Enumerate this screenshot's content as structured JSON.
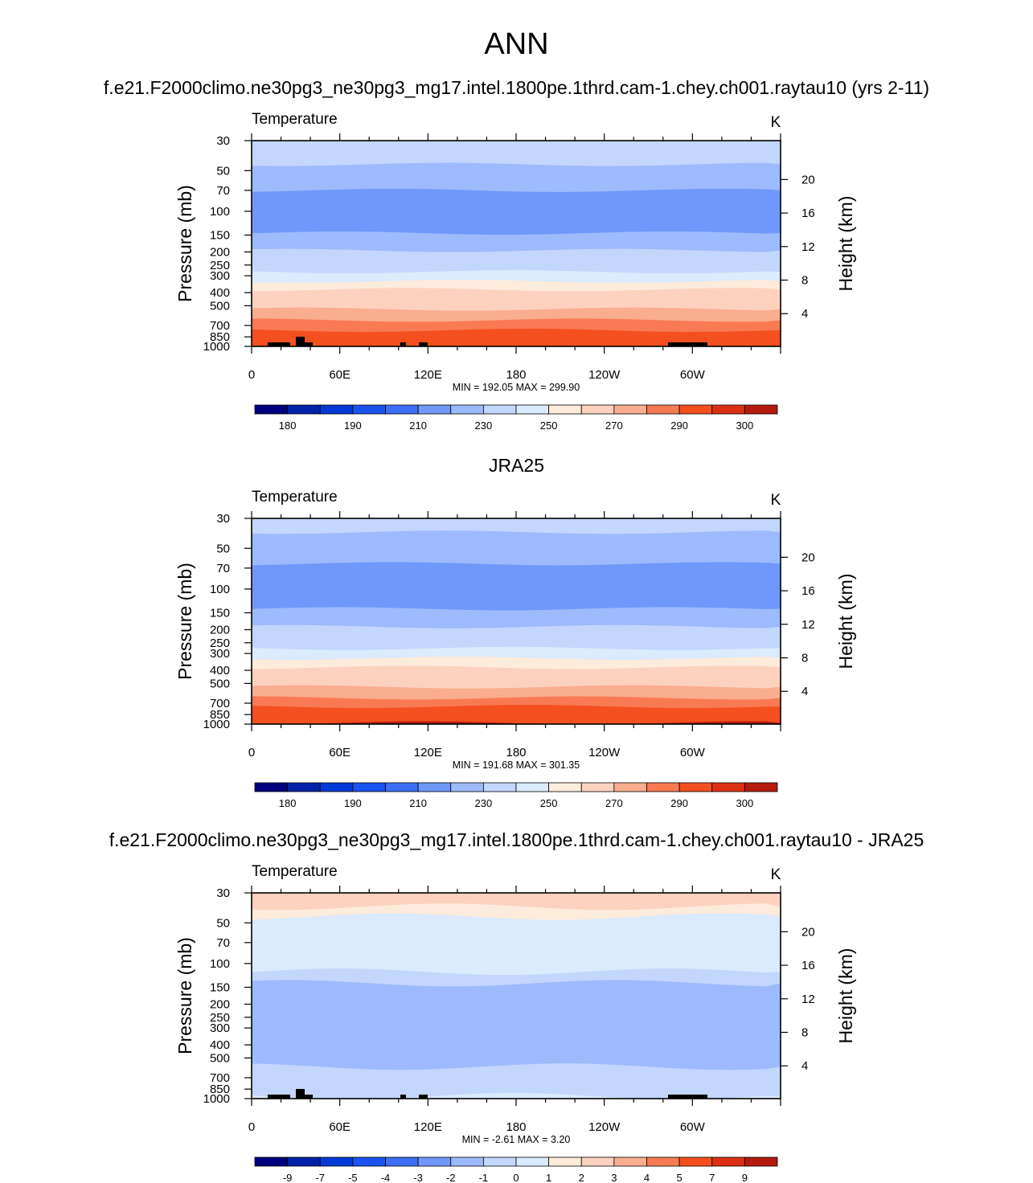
{
  "main_title": "ANN",
  "colors": {
    "temperature_scale": [
      "#00007f",
      "#0022a8",
      "#0039d6",
      "#1a53f0",
      "#3c6ff5",
      "#6f98fa",
      "#9dbafc",
      "#c3d6fc",
      "#dbeafd",
      "#fdebdc",
      "#fcd2bf",
      "#faad8f",
      "#f87a53",
      "#f4501f",
      "#dc3012",
      "#b31b0e",
      "#800000"
    ],
    "difference_scale": [
      "#00007f",
      "#0022a8",
      "#0039d6",
      "#1a53f0",
      "#3c6ff5",
      "#6f98fa",
      "#9dbafc",
      "#c3d6fc",
      "#dbeafd",
      "#fdebdc",
      "#fcd2bf",
      "#faad8f",
      "#f87a53",
      "#f4501f",
      "#dc3012",
      "#b31b0e",
      "#800000"
    ],
    "topography": "#000000"
  },
  "chart_data": [
    {
      "type": "contour",
      "panel_title": "f.e21.F2000climo.ne30pg3_ne30pg3_mg17.intel.1800pe.1thrd.cam-1.chey.ch001.raytau10 (yrs 2-11)",
      "variable": "Temperature",
      "units": "K",
      "ylabel": "Pressure (mb)",
      "ylabel_right": "Height (km)",
      "y_ticks": [
        "30",
        "50",
        "70",
        "100",
        "150",
        "200",
        "250",
        "300",
        "400",
        "500",
        "700",
        "850",
        "1000"
      ],
      "y_ticks_right": [
        "20",
        "16",
        "12",
        "8",
        "4"
      ],
      "x_ticks": [
        "0",
        "60E",
        "120E",
        "180",
        "120W",
        "60W"
      ],
      "stats": "MIN = 192.05  MAX = 299.90",
      "colorbar_labels": [
        "180",
        "190",
        "210",
        "230",
        "250",
        "270",
        "290",
        "300"
      ],
      "layers": [
        {
          "p": 30,
          "value": 222
        },
        {
          "p": 45,
          "value": 215
        },
        {
          "p": 70,
          "value": 205
        },
        {
          "p": 145,
          "value": 212
        },
        {
          "p": 195,
          "value": 222
        },
        {
          "p": 235,
          "value": 228
        },
        {
          "p": 280,
          "value": 235
        },
        {
          "p": 330,
          "value": 243
        },
        {
          "p": 380,
          "value": 250
        },
        {
          "p": 450,
          "value": 258
        },
        {
          "p": 530,
          "value": 265
        },
        {
          "p": 640,
          "value": 272
        },
        {
          "p": 760,
          "value": 280
        },
        {
          "p": 920,
          "value": 288
        }
      ]
    },
    {
      "type": "contour",
      "panel_title": "JRA25",
      "variable": "Temperature",
      "units": "K",
      "ylabel": "Pressure (mb)",
      "ylabel_right": "Height (km)",
      "y_ticks": [
        "30",
        "50",
        "70",
        "100",
        "150",
        "200",
        "250",
        "300",
        "400",
        "500",
        "700",
        "850",
        "1000"
      ],
      "y_ticks_right": [
        "20",
        "16",
        "12",
        "8",
        "4"
      ],
      "x_ticks": [
        "0",
        "60E",
        "120E",
        "180",
        "120W",
        "60W"
      ],
      "stats": "MIN = 191.68  MAX = 301.35",
      "colorbar_labels": [
        "180",
        "190",
        "210",
        "230",
        "250",
        "270",
        "290",
        "300"
      ],
      "layers": [
        {
          "p": 30,
          "value": 220
        },
        {
          "p": 38,
          "value": 215
        },
        {
          "p": 65,
          "value": 205
        },
        {
          "p": 140,
          "value": 212
        },
        {
          "p": 190,
          "value": 222
        },
        {
          "p": 235,
          "value": 228
        },
        {
          "p": 275,
          "value": 235
        },
        {
          "p": 325,
          "value": 243
        },
        {
          "p": 380,
          "value": 250
        },
        {
          "p": 450,
          "value": 258
        },
        {
          "p": 530,
          "value": 265
        },
        {
          "p": 640,
          "value": 272
        },
        {
          "p": 740,
          "value": 280
        },
        {
          "p": 880,
          "value": 288
        },
        {
          "p": 980,
          "value": 295
        }
      ]
    },
    {
      "type": "contour",
      "panel_title": "f.e21.F2000climo.ne30pg3_ne30pg3_mg17.intel.1800pe.1thrd.cam-1.chey.ch001.raytau10 - JRA25",
      "variable": "Temperature",
      "units": "K",
      "ylabel": "Pressure (mb)",
      "ylabel_right": "Height (km)",
      "y_ticks": [
        "30",
        "50",
        "70",
        "100",
        "150",
        "200",
        "250",
        "300",
        "400",
        "500",
        "700",
        "850",
        "1000"
      ],
      "y_ticks_right": [
        "20",
        "16",
        "12",
        "8",
        "4"
      ],
      "x_ticks": [
        "0",
        "60E",
        "120E",
        "180",
        "120W",
        "60W"
      ],
      "stats": "MIN =  -2.61  MAX =   3.20",
      "colorbar_labels": [
        "-9",
        "-7",
        "-5",
        "-4",
        "-3",
        "-2",
        "-1",
        "0",
        "1",
        "2",
        "3",
        "4",
        "5",
        "7",
        "9"
      ],
      "layers": [
        {
          "p": 30,
          "value": 2.5
        },
        {
          "p": 38,
          "value": 1.5
        },
        {
          "p": 45,
          "value": 0.5
        },
        {
          "p": 115,
          "value": -0.5
        },
        {
          "p": 140,
          "value": -1.5
        },
        {
          "p": 580,
          "value": -0.5
        },
        {
          "p": 960,
          "value": 0.5
        }
      ]
    }
  ]
}
